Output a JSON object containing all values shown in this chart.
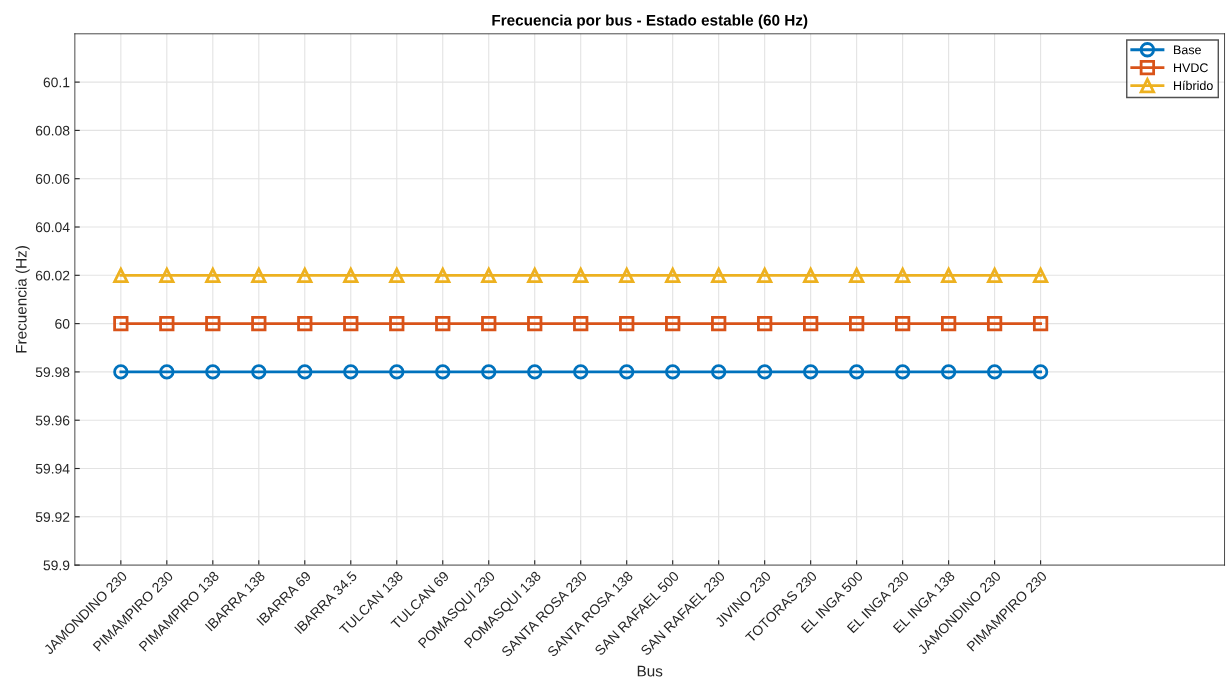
{
  "chart_data": {
    "type": "line",
    "title": "Frecuencia por bus - Estado estable (60 Hz)",
    "xlabel": "Bus",
    "ylabel": "Frecuencia (Hz)",
    "categories": [
      "JAMONDINO 230",
      "PIMAMPIRO 230",
      "PIMAMPIRO 138",
      "IBARRA 138",
      "IBARRA 69",
      "IBARRA 34.5",
      "TULCAN 138",
      "TULCAN 69",
      "POMASQUI 230",
      "POMASQUI 138",
      "SANTA ROSA 230",
      "SANTA ROSA 138",
      "SAN RAFAEL 500",
      "SAN RAFAEL 230",
      "JIVINO 230",
      "TOTORAS 230",
      "EL INGA 500",
      "EL INGA 230",
      "EL INGA 138",
      "JAMONDINO 230",
      "PIMAMPIRO 230"
    ],
    "series": [
      {
        "name": "Base",
        "color": "#0072bd",
        "marker": "circle",
        "values": [
          59.98,
          59.98,
          59.98,
          59.98,
          59.98,
          59.98,
          59.98,
          59.98,
          59.98,
          59.98,
          59.98,
          59.98,
          59.98,
          59.98,
          59.98,
          59.98,
          59.98,
          59.98,
          59.98,
          59.98,
          59.98
        ]
      },
      {
        "name": "HVDC",
        "color": "#d95319",
        "marker": "square",
        "values": [
          60,
          60,
          60,
          60,
          60,
          60,
          60,
          60,
          60,
          60,
          60,
          60,
          60,
          60,
          60,
          60,
          60,
          60,
          60,
          60,
          60
        ]
      },
      {
        "name": "Híbrido",
        "color": "#edb120",
        "marker": "triangle",
        "values": [
          60.02,
          60.02,
          60.02,
          60.02,
          60.02,
          60.02,
          60.02,
          60.02,
          60.02,
          60.02,
          60.02,
          60.02,
          60.02,
          60.02,
          60.02,
          60.02,
          60.02,
          60.02,
          60.02,
          60.02,
          60.02
        ]
      }
    ],
    "ylim": [
      59.9,
      60.12
    ],
    "yticks": [
      59.9,
      59.92,
      59.94,
      59.96,
      59.98,
      60,
      60.02,
      60.04,
      60.06,
      60.08,
      60.1
    ],
    "grid": true,
    "legend": "top right",
    "line_style": "solid"
  }
}
